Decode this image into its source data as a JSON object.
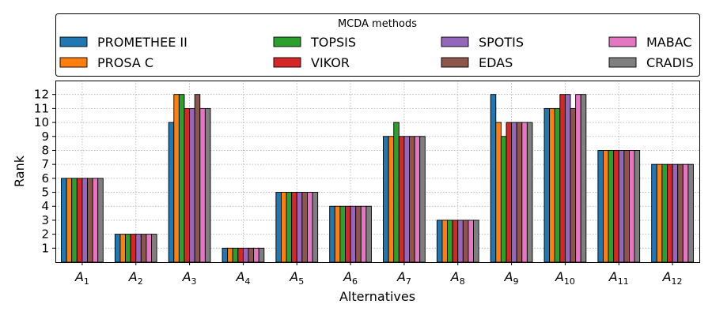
{
  "chart_data": {
    "type": "bar",
    "title": "",
    "xlabel": "Alternatives",
    "ylabel": "Rank",
    "ylim": [
      0,
      13
    ],
    "yticks": [
      1,
      2,
      3,
      4,
      5,
      6,
      7,
      8,
      9,
      10,
      11,
      12
    ],
    "grid": true,
    "legend_title": "MCDA methods",
    "legend_position": "top",
    "categories": [
      {
        "base": "A",
        "sub": "1"
      },
      {
        "base": "A",
        "sub": "2"
      },
      {
        "base": "A",
        "sub": "3"
      },
      {
        "base": "A",
        "sub": "4"
      },
      {
        "base": "A",
        "sub": "5"
      },
      {
        "base": "A",
        "sub": "6"
      },
      {
        "base": "A",
        "sub": "7"
      },
      {
        "base": "A",
        "sub": "8"
      },
      {
        "base": "A",
        "sub": "9"
      },
      {
        "base": "A",
        "sub": "10"
      },
      {
        "base": "A",
        "sub": "11"
      },
      {
        "base": "A",
        "sub": "12"
      }
    ],
    "series": [
      {
        "name": "PROMETHEE II",
        "color": "#1f77b4",
        "values": [
          6,
          2,
          10,
          1,
          5,
          4,
          9,
          3,
          12,
          11,
          8,
          7
        ]
      },
      {
        "name": "PROSA C",
        "color": "#ff7f0e",
        "values": [
          6,
          2,
          12,
          1,
          5,
          4,
          9,
          3,
          10,
          11,
          8,
          7
        ]
      },
      {
        "name": "TOPSIS",
        "color": "#2ca02c",
        "values": [
          6,
          2,
          12,
          1,
          5,
          4,
          10,
          3,
          9,
          11,
          8,
          7
        ]
      },
      {
        "name": "VIKOR",
        "color": "#d62728",
        "values": [
          6,
          2,
          11,
          1,
          5,
          4,
          9,
          3,
          10,
          12,
          8,
          7
        ]
      },
      {
        "name": "SPOTIS",
        "color": "#9467bd",
        "values": [
          6,
          2,
          11,
          1,
          5,
          4,
          9,
          3,
          10,
          12,
          8,
          7
        ]
      },
      {
        "name": "EDAS",
        "color": "#8c564b",
        "values": [
          6,
          2,
          12,
          1,
          5,
          4,
          9,
          3,
          10,
          11,
          8,
          7
        ]
      },
      {
        "name": "MABAC",
        "color": "#e377c2",
        "values": [
          6,
          2,
          11,
          1,
          5,
          4,
          9,
          3,
          10,
          12,
          8,
          7
        ]
      },
      {
        "name": "CRADIS",
        "color": "#7f7f7f",
        "values": [
          6,
          2,
          11,
          1,
          5,
          4,
          9,
          3,
          10,
          12,
          8,
          7
        ]
      }
    ]
  }
}
